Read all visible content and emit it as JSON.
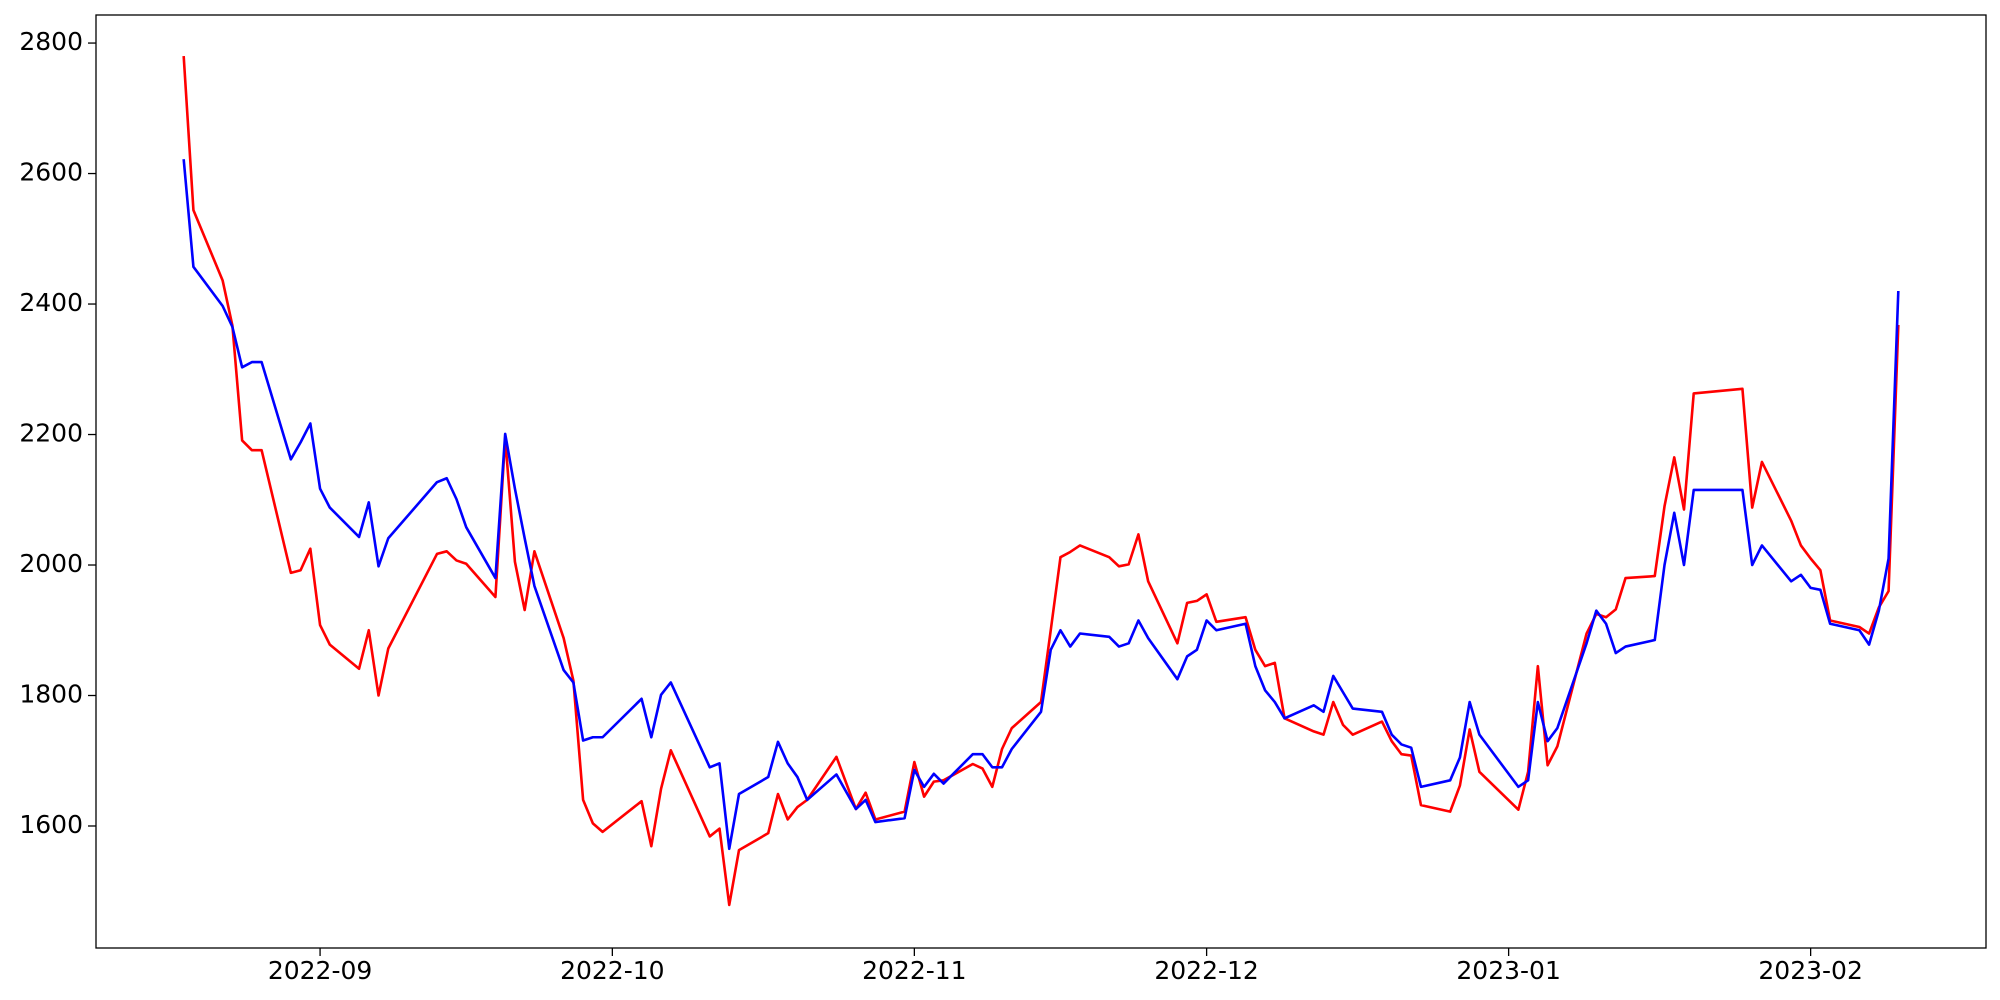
{
  "chart_data": {
    "type": "line",
    "x": [
      "2022-08-18",
      "2022-08-19",
      "2022-08-22",
      "2022-08-23",
      "2022-08-24",
      "2022-08-25",
      "2022-08-26",
      "2022-08-29",
      "2022-08-30",
      "2022-08-31",
      "2022-09-01",
      "2022-09-02",
      "2022-09-05",
      "2022-09-06",
      "2022-09-07",
      "2022-09-08",
      "2022-09-13",
      "2022-09-14",
      "2022-09-15",
      "2022-09-16",
      "2022-09-19",
      "2022-09-20",
      "2022-09-21",
      "2022-09-22",
      "2022-09-23",
      "2022-09-26",
      "2022-09-27",
      "2022-09-28",
      "2022-09-29",
      "2022-09-30",
      "2022-10-04",
      "2022-10-05",
      "2022-10-06",
      "2022-10-07",
      "2022-10-11",
      "2022-10-12",
      "2022-10-13",
      "2022-10-14",
      "2022-10-17",
      "2022-10-18",
      "2022-10-19",
      "2022-10-20",
      "2022-10-21",
      "2022-10-24",
      "2022-10-26",
      "2022-10-27",
      "2022-10-28",
      "2022-10-31",
      "2022-11-01",
      "2022-11-02",
      "2022-11-03",
      "2022-11-04",
      "2022-11-07",
      "2022-11-08",
      "2022-11-09",
      "2022-11-10",
      "2022-11-11",
      "2022-11-14",
      "2022-11-15",
      "2022-11-16",
      "2022-11-17",
      "2022-11-18",
      "2022-11-21",
      "2022-11-22",
      "2022-11-23",
      "2022-11-24",
      "2022-11-25",
      "2022-11-28",
      "2022-11-29",
      "2022-11-30",
      "2022-12-01",
      "2022-12-02",
      "2022-12-05",
      "2022-12-06",
      "2022-12-07",
      "2022-12-08",
      "2022-12-09",
      "2022-12-12",
      "2022-12-13",
      "2022-12-14",
      "2022-12-15",
      "2022-12-16",
      "2022-12-19",
      "2022-12-20",
      "2022-12-21",
      "2022-12-22",
      "2022-12-23",
      "2022-12-26",
      "2022-12-27",
      "2022-12-28",
      "2022-12-29",
      "2023-01-02",
      "2023-01-03",
      "2023-01-04",
      "2023-01-05",
      "2023-01-06",
      "2023-01-09",
      "2023-01-10",
      "2023-01-11",
      "2023-01-12",
      "2023-01-13",
      "2023-01-16",
      "2023-01-17",
      "2023-01-18",
      "2023-01-19",
      "2023-01-20",
      "2023-01-25",
      "2023-01-26",
      "2023-01-27",
      "2023-01-30",
      "2023-01-31",
      "2023-02-01",
      "2023-02-02",
      "2023-02-03",
      "2023-02-06",
      "2023-02-07",
      "2023-02-08",
      "2023-02-09",
      "2023-02-10"
    ],
    "series": [
      {
        "color": "#ff0000",
        "values": [
          2780,
          2544,
          2436,
          2367,
          2191,
          2176,
          2176,
          1988,
          1992,
          2025,
          1908,
          1878,
          1841,
          1900,
          1800,
          1872,
          2017,
          2021,
          2007,
          2002,
          1951,
          2195,
          2005,
          1931,
          2021,
          1888,
          1823,
          1640,
          1604,
          1591,
          1638,
          1569,
          1657,
          1716,
          1584,
          1596,
          1479,
          1563,
          1589,
          1649,
          1610,
          1629,
          1640,
          1706,
          1626,
          1651,
          1610,
          1622,
          1698,
          1645,
          1668,
          1670,
          1695,
          1688,
          1660,
          1718,
          1750,
          1790,
          1900,
          2012,
          2020,
          2030,
          2012,
          1998,
          2001,
          2047,
          1975,
          1880,
          1942,
          1945,
          1955,
          1913,
          1920,
          1870,
          1845,
          1850,
          1765,
          1745,
          1740,
          1790,
          1755,
          1740,
          1760,
          1730,
          1710,
          1708,
          1632,
          1622,
          1662,
          1748,
          1683,
          1625,
          1683,
          1845,
          1693,
          1722,
          1895,
          1925,
          1920,
          1932,
          1980,
          1983,
          2090,
          2165,
          2085,
          2263,
          2270,
          2088,
          2158,
          2068,
          2030,
          2010,
          1992,
          1915,
          1905,
          1895,
          1935,
          1960,
          2368
        ]
      },
      {
        "color": "#0000ff",
        "values": [
          2622,
          2457,
          2397,
          2365,
          2303,
          2311,
          2311,
          2162,
          2188,
          2217,
          2117,
          2088,
          2043,
          2096,
          1998,
          2041,
          2127,
          2133,
          2101,
          2058,
          1980,
          2201,
          2117,
          2041,
          1968,
          1839,
          1820,
          1731,
          1736,
          1736,
          1795,
          1736,
          1801,
          1820,
          1690,
          1696,
          1565,
          1649,
          1675,
          1729,
          1696,
          1675,
          1640,
          1679,
          1626,
          1640,
          1606,
          1612,
          1686,
          1660,
          1680,
          1665,
          1710,
          1710,
          1690,
          1690,
          1718,
          1775,
          1870,
          1900,
          1875,
          1895,
          1890,
          1875,
          1880,
          1915,
          1888,
          1825,
          1860,
          1870,
          1915,
          1900,
          1910,
          1845,
          1808,
          1790,
          1765,
          1785,
          1775,
          1830,
          1805,
          1780,
          1775,
          1740,
          1725,
          1720,
          1660,
          1670,
          1705,
          1790,
          1740,
          1660,
          1670,
          1790,
          1730,
          1750,
          1880,
          1930,
          1910,
          1865,
          1875,
          1885,
          2000,
          2080,
          2000,
          2115,
          2115,
          2000,
          2030,
          1975,
          1985,
          1965,
          1962,
          1910,
          1900,
          1878,
          1930,
          2010,
          2420
        ]
      }
    ],
    "xlim": [
      "2022-08-09",
      "2023-02-19"
    ],
    "xticks": [
      "2022-09",
      "2022-10",
      "2022-11",
      "2022-12",
      "2023-01",
      "2023-02"
    ],
    "ylim": [
      1413,
      2843
    ],
    "yticks": [
      1600,
      1800,
      2000,
      2200,
      2400,
      2600,
      2800
    ]
  }
}
